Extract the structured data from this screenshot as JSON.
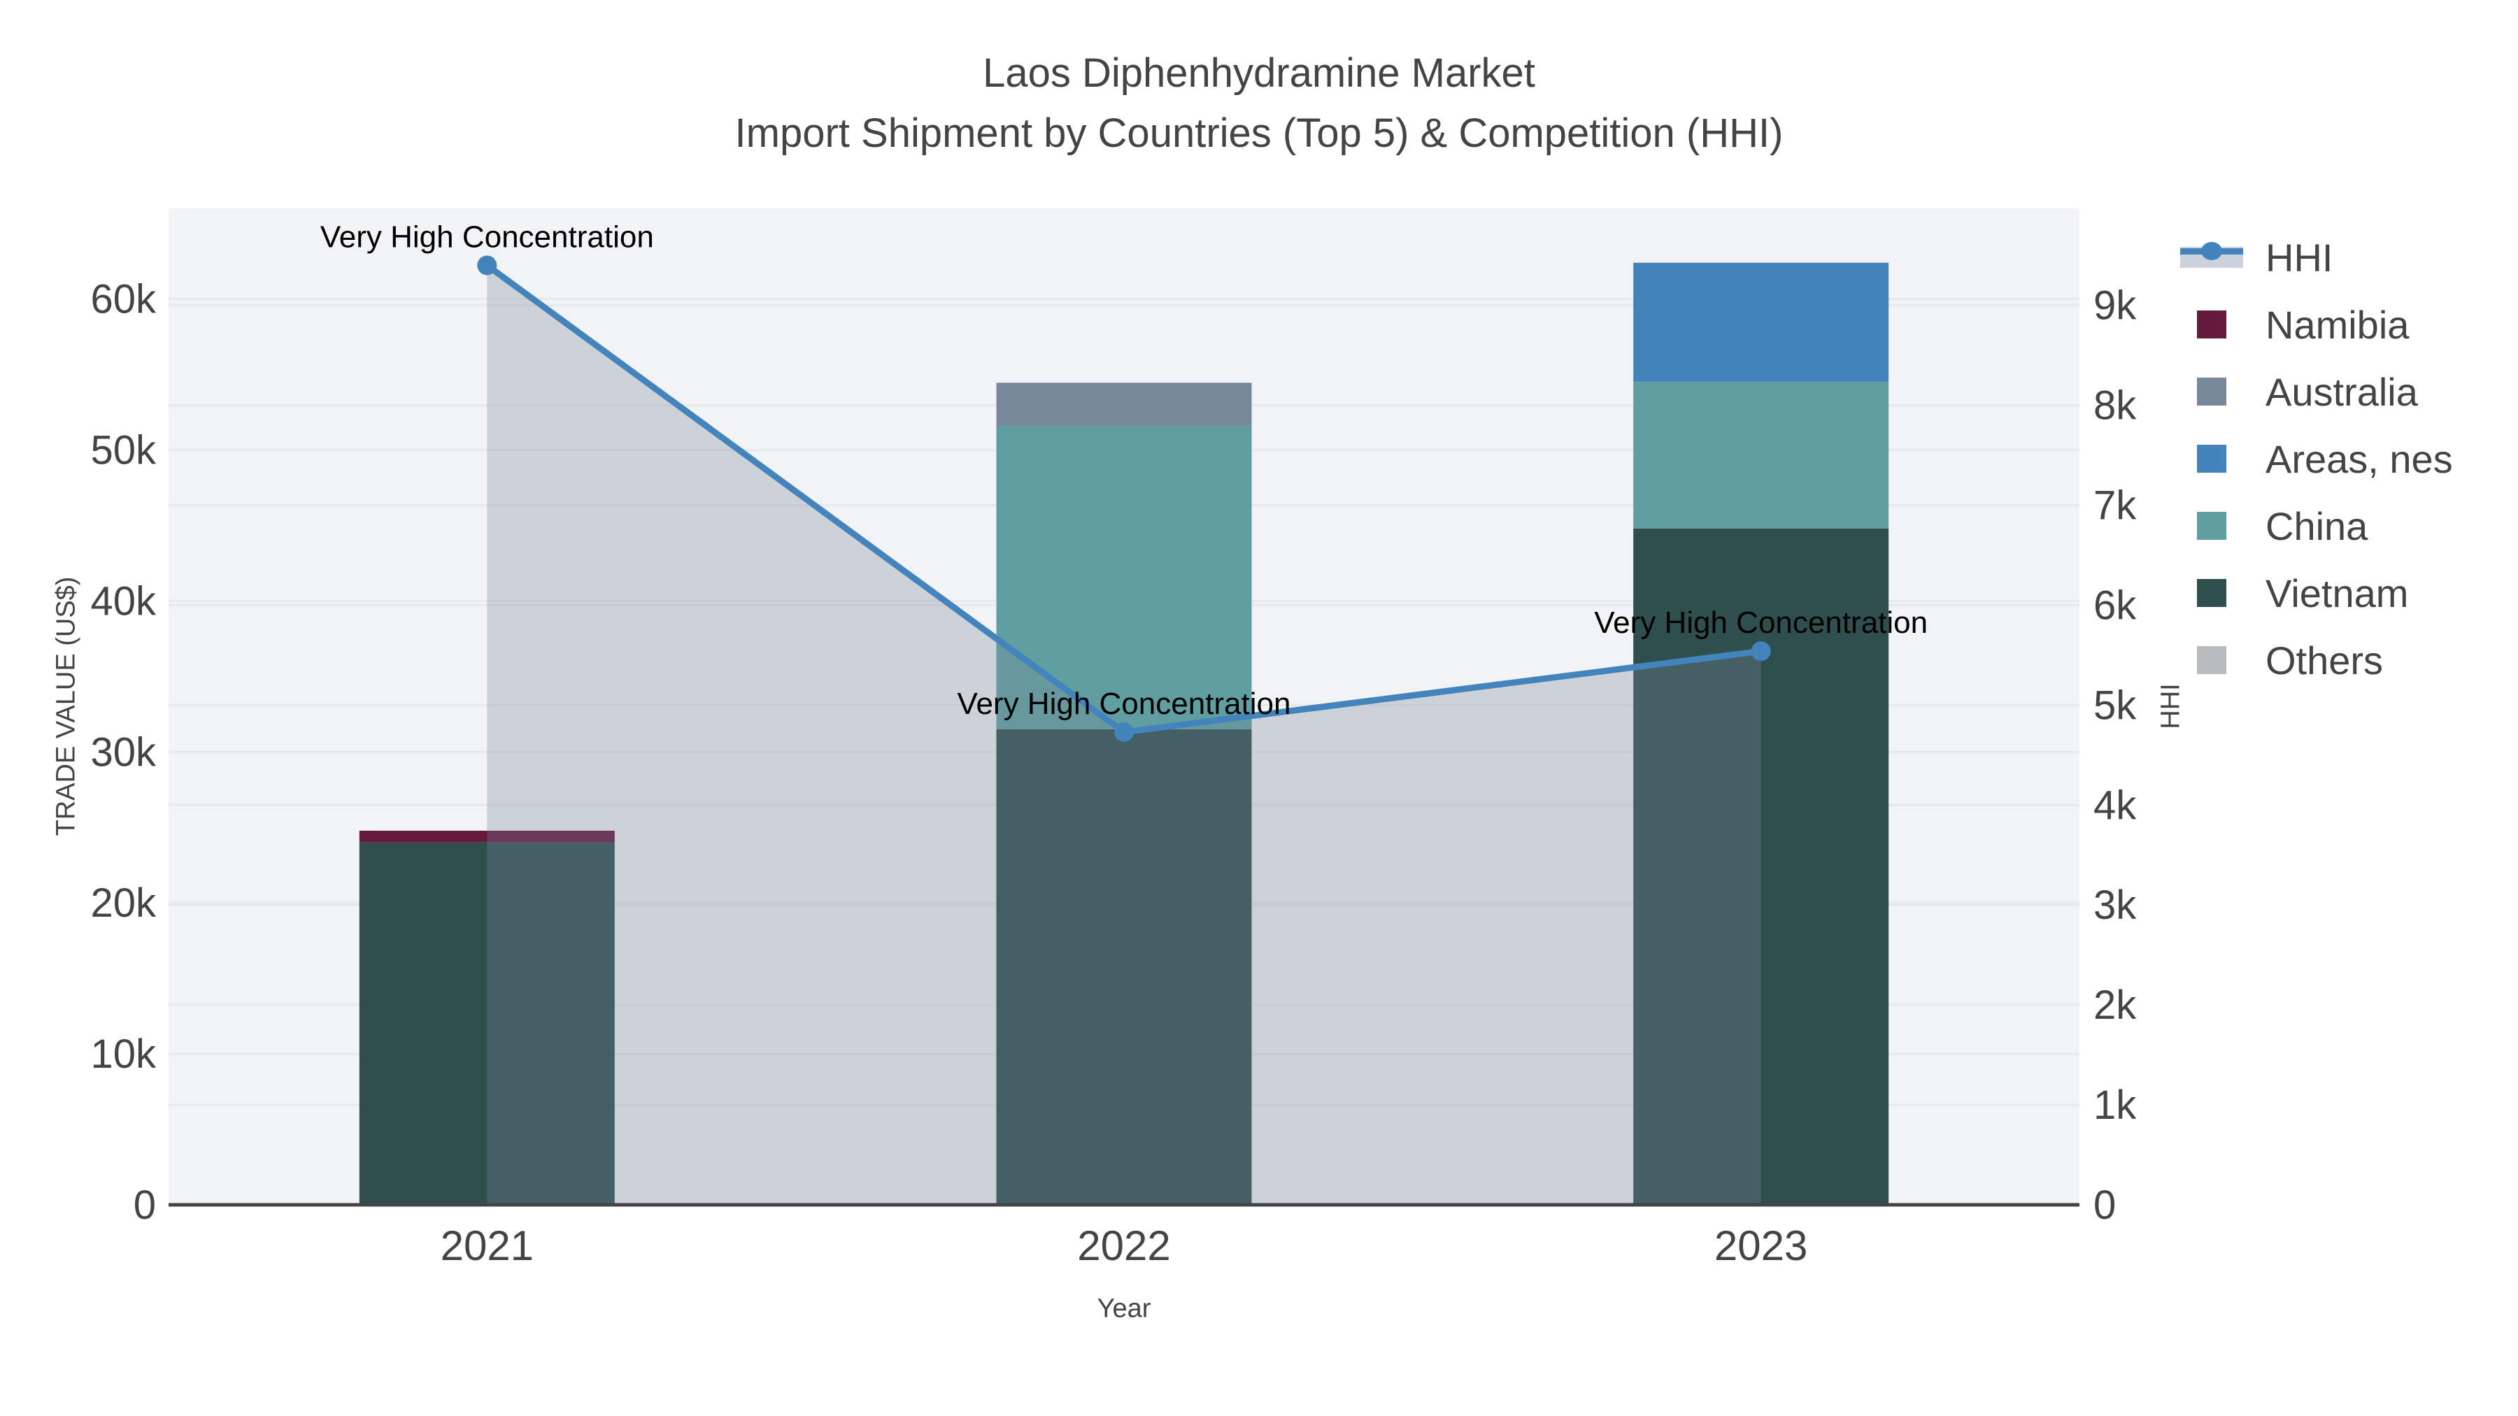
{
  "title": {
    "line1": "Laos Diphenhydramine Market",
    "line2": "Import Shipment by Countries (Top 5) & Competition (HHI)"
  },
  "axes": {
    "x": {
      "title": "Year"
    },
    "y_left": {
      "title": "TRADE VALUE (US$)",
      "ticks": [
        "0",
        "10k",
        "20k",
        "30k",
        "40k",
        "50k",
        "60k"
      ]
    },
    "y_right": {
      "title": "HHI",
      "ticks": [
        "0",
        "1k",
        "2k",
        "3k",
        "4k",
        "5k",
        "6k",
        "7k",
        "8k",
        "9k"
      ]
    }
  },
  "legend": {
    "items": [
      {
        "label": "HHI",
        "type": "line",
        "color": "#4484bc",
        "band": "#cbd2dc"
      },
      {
        "label": "Namibia",
        "type": "bar",
        "color": "#651b3e"
      },
      {
        "label": "Australia",
        "type": "bar",
        "color": "#78889b"
      },
      {
        "label": "Areas, nes",
        "type": "bar",
        "color": "#4484bc"
      },
      {
        "label": "China",
        "type": "bar",
        "color": "#5f9fa1"
      },
      {
        "label": "Vietnam",
        "type": "bar",
        "color": "#2f4f4f"
      },
      {
        "label": "Others",
        "type": "bar",
        "color": "#b9bcbf"
      }
    ]
  },
  "colors": {
    "plot_background": "#f2f3f4",
    "gridline": "#e7e9ea",
    "zero_line": "#444444",
    "tick_text": "#444444",
    "annotation_text": "#000000",
    "hhi_area_fill": "rgba(119,136,153,0.30)"
  },
  "chart_data": {
    "type": "bar",
    "subtype": "stacked-bars-with-dual-axis-line",
    "categories": [
      "2021",
      "2022",
      "2023"
    ],
    "bar_stack_order_bottom_to_top": [
      "Vietnam",
      "China",
      "Areas, nes",
      "Australia",
      "Namibia",
      "Others"
    ],
    "series": [
      {
        "name": "Vietnam",
        "type": "bar",
        "axis": "left",
        "color": "#2f4f4f",
        "values": [
          24000,
          31500,
          44800
        ]
      },
      {
        "name": "China",
        "type": "bar",
        "axis": "left",
        "color": "#5f9fa1",
        "values": [
          0,
          20100,
          9700
        ]
      },
      {
        "name": "Areas, nes",
        "type": "bar",
        "axis": "left",
        "color": "#4484bc",
        "values": [
          0,
          0,
          7900
        ]
      },
      {
        "name": "Australia",
        "type": "bar",
        "axis": "left",
        "color": "#78889b",
        "values": [
          0,
          2850,
          0
        ]
      },
      {
        "name": "Namibia",
        "type": "bar",
        "axis": "left",
        "color": "#651b3e",
        "values": [
          780,
          0,
          0
        ]
      },
      {
        "name": "Others",
        "type": "bar",
        "axis": "left",
        "color": "#b9bcbf",
        "values": [
          0,
          0,
          0
        ]
      }
    ],
    "line_series": {
      "name": "HHI",
      "type": "line+area",
      "axis": "right",
      "color": "#4484bc",
      "fill": "rgba(119,136,153,0.30)",
      "values": [
        9400,
        4730,
        5540
      ]
    },
    "annotations": [
      {
        "x": "2021",
        "text": "Very High Concentration"
      },
      {
        "x": "2022",
        "text": "Very High Concentration"
      },
      {
        "x": "2023",
        "text": "Very High Concentration"
      }
    ],
    "xlabel": "Year",
    "ylabel_left": "TRADE VALUE (US$)",
    "ylabel_right": "HHI",
    "ylim_left": [
      0,
      66000
    ],
    "ylim_right": [
      0,
      9970
    ],
    "grid": true,
    "legend_position": "right"
  }
}
